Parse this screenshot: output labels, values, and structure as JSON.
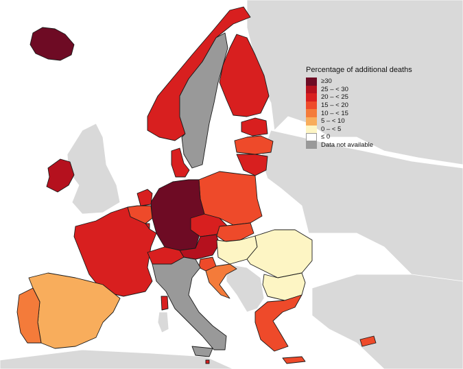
{
  "legend": {
    "title": "Percentage of additional deaths",
    "items": [
      {
        "label": "≥30",
        "color": "#6e0b24"
      },
      {
        "label": "25 – < 30",
        "color": "#b5111e"
      },
      {
        "label": "20 – < 25",
        "color": "#d81f1f"
      },
      {
        "label": "15 – < 20",
        "color": "#ee4a2a"
      },
      {
        "label": "10 – < 15",
        "color": "#f47b3a"
      },
      {
        "label": "5 – < 10",
        "color": "#f8ad5c"
      },
      {
        "label": "0 – < 5",
        "color": "#fdf5c4"
      },
      {
        "label": "≤ 0",
        "color": "#ffffff"
      },
      {
        "label": "Data not available",
        "color": "#999999"
      }
    ]
  },
  "colors": {
    "sea": "#ffffff",
    "non_eu_land": "#d9d9d9",
    "border": "#1a1a1a"
  },
  "regions": [
    {
      "name": "Iceland",
      "class": "≥30"
    },
    {
      "name": "Ireland",
      "class": "25 – < 30"
    },
    {
      "name": "United Kingdom",
      "class": "non-EU"
    },
    {
      "name": "Norway",
      "class": "20 – < 25"
    },
    {
      "name": "Sweden",
      "class": "Data not available"
    },
    {
      "name": "Finland",
      "class": "20 – < 25"
    },
    {
      "name": "Estonia",
      "class": "20 – < 25"
    },
    {
      "name": "Latvia",
      "class": "15 – < 20"
    },
    {
      "name": "Lithuania",
      "class": "20 – < 25"
    },
    {
      "name": "Denmark",
      "class": "20 – < 25"
    },
    {
      "name": "Netherlands",
      "class": "20 – < 25"
    },
    {
      "name": "Belgium",
      "class": "15 – < 20"
    },
    {
      "name": "Luxembourg",
      "class": "20 – < 25"
    },
    {
      "name": "Germany",
      "class": "≥30"
    },
    {
      "name": "Poland",
      "class": "15 – < 20"
    },
    {
      "name": "Czechia",
      "class": "20 – < 25"
    },
    {
      "name": "Slovakia",
      "class": "15 – < 20"
    },
    {
      "name": "Austria",
      "class": "25 – < 30"
    },
    {
      "name": "Hungary",
      "class": "0 – < 5"
    },
    {
      "name": "Romania",
      "class": "0 – < 5"
    },
    {
      "name": "Bulgaria",
      "class": "0 – < 5"
    },
    {
      "name": "Slovenia",
      "class": "15 – < 20"
    },
    {
      "name": "Croatia",
      "class": "10 – < 15"
    },
    {
      "name": "France",
      "class": "20 – < 25"
    },
    {
      "name": "Switzerland",
      "class": "20 – < 25"
    },
    {
      "name": "Italy",
      "class": "Data not available"
    },
    {
      "name": "Spain",
      "class": "5 – < 10"
    },
    {
      "name": "Portugal",
      "class": "10 – < 15"
    },
    {
      "name": "Greece",
      "class": "15 – < 20"
    },
    {
      "name": "Cyprus",
      "class": "15 – < 20"
    },
    {
      "name": "Malta",
      "class": "20 – < 25"
    },
    {
      "name": "Corsica",
      "class": "20 – < 25"
    }
  ]
}
